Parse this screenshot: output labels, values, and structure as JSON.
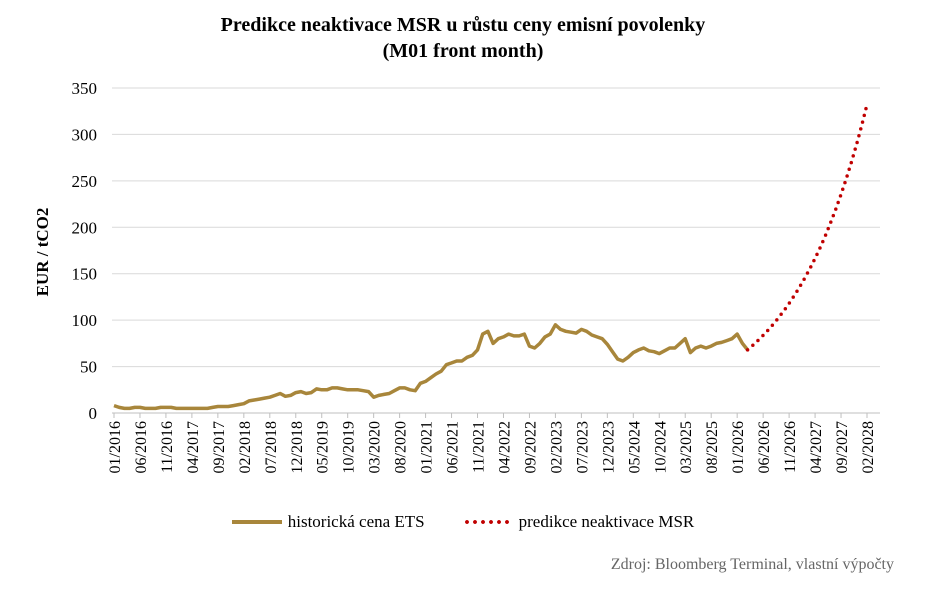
{
  "chart_data": {
    "type": "line",
    "title": "Predikce neaktivace MSR u růstu ceny emisní povolenky",
    "subtitle": "(M01 front month)",
    "xlabel": "",
    "ylabel": "EUR / tCO2",
    "ylim": [
      0,
      350
    ],
    "yticks": [
      0,
      50,
      100,
      150,
      200,
      250,
      300,
      350
    ],
    "grid": true,
    "legend_position": "bottom",
    "x_start": "01/2016",
    "x_end": "02/2028",
    "x_tick_labels": [
      "01/2016",
      "06/2016",
      "11/2016",
      "04/2017",
      "09/2017",
      "02/2018",
      "07/2018",
      "12/2018",
      "05/2019",
      "10/2019",
      "03/2020",
      "08/2020",
      "01/2021",
      "06/2021",
      "11/2021",
      "04/2022",
      "09/2022",
      "02/2023",
      "07/2023",
      "12/2023",
      "05/2024",
      "10/2024",
      "03/2025",
      "08/2025",
      "01/2026",
      "06/2026",
      "11/2026",
      "04/2027",
      "09/2027",
      "02/2028"
    ],
    "series": [
      {
        "name": "historická cena ETS",
        "color": "#a8863b",
        "style": "solid",
        "start": "01/2016",
        "values": [
          8,
          6,
          5,
          5,
          6,
          6,
          5,
          5,
          5,
          6,
          6,
          6,
          5,
          5,
          5,
          5,
          5,
          5,
          5,
          6,
          7,
          7,
          7,
          8,
          9,
          10,
          13,
          14,
          15,
          16,
          17,
          19,
          21,
          18,
          19,
          22,
          23,
          21,
          22,
          26,
          25,
          25,
          27,
          27,
          26,
          25,
          25,
          25,
          24,
          23,
          17,
          19,
          20,
          21,
          24,
          27,
          27,
          25,
          24,
          32,
          34,
          38,
          42,
          45,
          52,
          54,
          56,
          56,
          60,
          62,
          68,
          85,
          88,
          75,
          80,
          82,
          85,
          83,
          83,
          85,
          72,
          70,
          75,
          82,
          85,
          95,
          90,
          88,
          87,
          86,
          90,
          88,
          84,
          82,
          80,
          74,
          66,
          58,
          56,
          60,
          65,
          68,
          70,
          67,
          66,
          64,
          67,
          70,
          70,
          75,
          80,
          65,
          70,
          72,
          70,
          72,
          75,
          76,
          78,
          80,
          85,
          75,
          68
        ]
      },
      {
        "name": "predikce neaktivace MSR",
        "color": "#c00000",
        "style": "dotted",
        "start": "03/2026",
        "values": [
          68,
          72.9,
          78.1,
          83.6,
          89.6,
          96.0,
          102.8,
          110.2,
          118.0,
          126.5,
          135.5,
          145.2,
          155.5,
          166.6,
          178.5,
          191.3,
          204.9,
          219.6,
          235.3,
          252.1,
          270.1,
          289.4,
          310.0,
          332.2
        ]
      }
    ],
    "source": "Zdroj: Bloomberg Terminal, vlastní výpočty"
  }
}
